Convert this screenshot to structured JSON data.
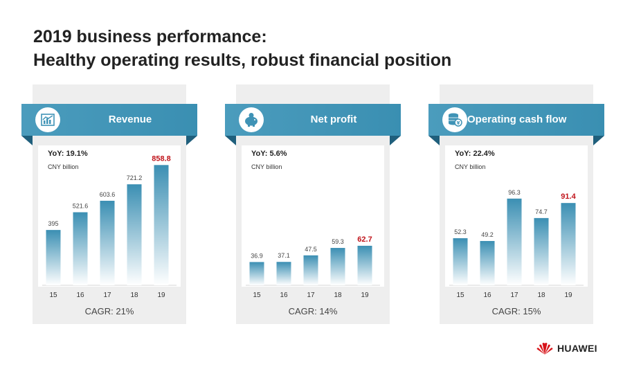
{
  "title_line1": "2019 business performance:",
  "title_line2": "Healthy operating results, robust financial position",
  "colors": {
    "banner": "#3f93b6",
    "bar_top": "#3b8fb3",
    "highlight": "#c0141b"
  },
  "brand": "HUAWEI",
  "cards": [
    {
      "banner": "Revenue",
      "icon": "bar-chart-icon",
      "yoy": "YoY: 19.1%",
      "unit": "CNY billion",
      "cagr": "CAGR: 21%"
    },
    {
      "banner": "Net profit",
      "icon": "piggy-bank-icon",
      "yoy": "YoY: 5.6%",
      "unit": "CNY billion",
      "cagr": "CAGR: 14%"
    },
    {
      "banner": "Operating cash flow",
      "icon": "cash-stack-icon",
      "yoy": "YoY: 22.4%",
      "unit": "CNY billion",
      "cagr": "CAGR: 15%"
    }
  ],
  "chart_data": [
    {
      "type": "bar",
      "title": "Revenue",
      "categories": [
        "15",
        "16",
        "17",
        "18",
        "19"
      ],
      "values": [
        395,
        521.6,
        603.6,
        721.2,
        858.8
      ],
      "labels": [
        "395",
        "521.6",
        "603.6",
        "721.2",
        "858.8"
      ],
      "ylim": [
        0,
        900
      ],
      "highlight_index": 4
    },
    {
      "type": "bar",
      "title": "Net profit",
      "categories": [
        "15",
        "16",
        "17",
        "18",
        "19"
      ],
      "values": [
        36.9,
        37.1,
        47.5,
        59.3,
        62.7
      ],
      "labels": [
        "36.9",
        "37.1",
        "47.5",
        "59.3",
        "62.7"
      ],
      "ylim": [
        0,
        200
      ],
      "highlight_index": 4
    },
    {
      "type": "bar",
      "title": "Operating cash flow",
      "categories": [
        "15",
        "16",
        "17",
        "18",
        "19"
      ],
      "values": [
        52.3,
        49.2,
        96.3,
        74.7,
        91.4
      ],
      "labels": [
        "52.3",
        "49.2",
        "96.3",
        "74.7",
        "91.4"
      ],
      "ylim": [
        0,
        140
      ],
      "highlight_index": 4
    }
  ]
}
